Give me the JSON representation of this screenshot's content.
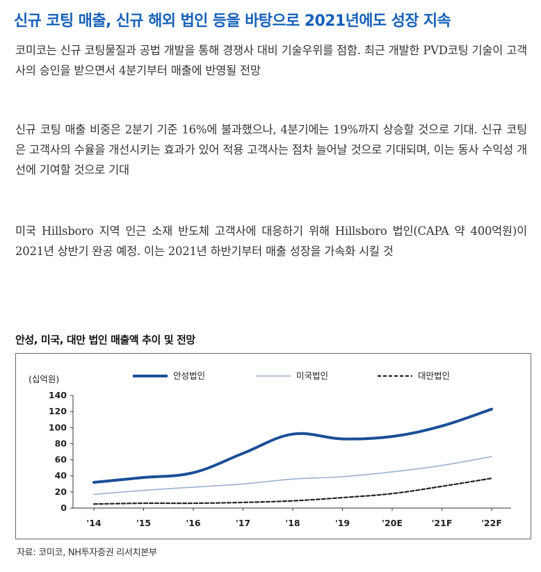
{
  "headline": "신규 코팅 매출, 신규 해외 법인 등을 바탕으로 2021년에도 성장 지속",
  "paragraphs": [
    "코미코는 신규 코팅물질과 공법 개발을 통해 경쟁사 대비 기술우위를 점함. 최근 개발한 PVD코팅 기술이 고객사의 승인을 받으면서 4분기부터 매출에 반영될 전망",
    "신규 코팅 매출 비중은 2분기 기준 16%에 불과했으나, 4분기에는 19%까지 상승할 것으로 기대. 신규 코팅은 고객사의 수율을 개선시키는 효과가 있어 적용 고객사는 점차 늘어날 것으로 기대되며, 이는 동사 수익성 개선에 기여할 것으로 기대",
    "미국 Hillsboro 지역 인근 소재 반도체 고객사에 대응하기 위해 Hillsboro 법인(CAPA 약 400억원)이 2021년 상반기 완공 예정. 이는 2021년 하반기부터 매출 성장을 가속화 시킬 것"
  ],
  "source": "자료: 코미코, NH투자증권 리서치본부",
  "colors": {
    "headline": "#1560b8",
    "series_1": "#1a4f96",
    "series_2": "#9db0d0",
    "series_3": "#222222"
  },
  "chart_data": {
    "type": "line",
    "title": "안성, 미국, 대만 법인 매출액 추이 및 전망",
    "ylabel": "(십억원)",
    "xlabel": "",
    "categories": [
      "'14",
      "'15",
      "'16",
      "'17",
      "'18",
      "'19",
      "'20E",
      "'21F",
      "'22F"
    ],
    "ylim": [
      0,
      140
    ],
    "yticks": [
      0,
      20,
      40,
      60,
      80,
      100,
      120,
      140
    ],
    "grid": false,
    "legend": "top",
    "series": [
      {
        "name": "안성법인",
        "style": "solid-thick",
        "values": [
          32,
          38,
          44,
          68,
          92,
          86,
          89,
          102,
          123
        ]
      },
      {
        "name": "미국법인",
        "style": "solid-thin",
        "values": [
          17,
          22,
          26,
          30,
          36,
          39,
          45,
          53,
          64
        ]
      },
      {
        "name": "대만법인",
        "style": "dashed",
        "values": [
          5,
          6,
          6,
          7,
          9,
          13,
          18,
          27,
          37
        ]
      }
    ]
  }
}
